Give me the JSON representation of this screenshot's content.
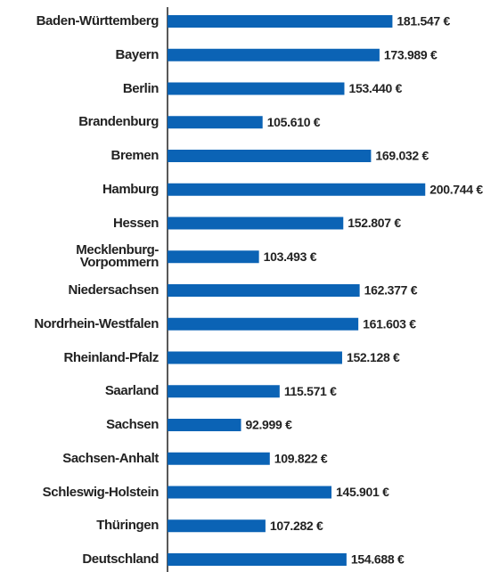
{
  "chart_data": {
    "type": "bar",
    "orientation": "horizontal",
    "color": "#0b63b5",
    "categories": [
      "Baden-Württemberg",
      "Bayern",
      "Berlin",
      "Brandenburg",
      "Bremen",
      "Hamburg",
      "Hessen",
      "Mecklenburg-\nVorpommern",
      "Niedersachsen",
      "Nordrhein-Westfalen",
      "Rheinland-Pfalz",
      "Saarland",
      "Sachsen",
      "Sachsen-Anhalt",
      "Schleswig-Holstein",
      "Thüringen",
      "Deutschland"
    ],
    "values": [
      181547,
      173989,
      153440,
      105610,
      169032,
      200744,
      152807,
      103493,
      162377,
      161603,
      152128,
      115571,
      92999,
      109822,
      145901,
      107282,
      154688
    ],
    "value_labels": [
      "181.547 €",
      "173.989 €",
      "153.440 €",
      "105.610 €",
      "169.032 €",
      "200.744 €",
      "152.807 €",
      "103.493 €",
      "162.377 €",
      "161.603 €",
      "152.128 €",
      "115.571 €",
      "92.999 €",
      "109.822 €",
      "145.901 €",
      "107.282 €",
      "154.688 €"
    ],
    "xlim": [
      50000,
      210000
    ]
  }
}
